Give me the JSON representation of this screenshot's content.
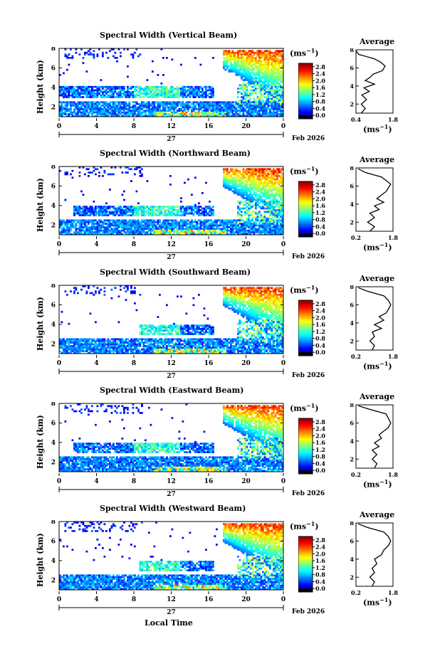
{
  "x_axis_title": "Local Time",
  "chart_data": [
    {
      "type": "heatmap",
      "title": "Spectral Width (Vertical Beam)",
      "ylabel": "Height (km)",
      "x_ticks": [
        "0",
        "4",
        "8",
        "12",
        "16",
        "20",
        "0"
      ],
      "y_ticks": [
        "2",
        "4",
        "6",
        "8"
      ],
      "xlim": [
        0,
        24
      ],
      "ylim": [
        1,
        8
      ],
      "day_label": "27",
      "date_label": "Feb 2026",
      "colorbar": {
        "unit": "(ms",
        "unit_sup": "−1",
        "unit_end": ")",
        "ticks": [
          "2.8",
          "2.4",
          "2.0",
          "1.6",
          "1.2",
          "0.8",
          "0.4",
          "0.0"
        ],
        "range": [
          0,
          2.8
        ]
      },
      "average": {
        "title": "Average",
        "xlabel": "(ms",
        "xlabel_sup": "−1",
        "xlabel_end": ")",
        "x_ticks": [
          "0.4",
          "1.8"
        ],
        "xlim": [
          0.4,
          1.8
        ],
        "y_ticks": [
          "2",
          "4",
          "6",
          "8"
        ],
        "profile": [
          [
            0.6,
            1.0
          ],
          [
            0.75,
            1.5
          ],
          [
            0.6,
            2.0
          ],
          [
            0.8,
            2.5
          ],
          [
            0.62,
            3.0
          ],
          [
            0.9,
            3.4
          ],
          [
            0.7,
            3.8
          ],
          [
            1.1,
            4.2
          ],
          [
            0.75,
            4.6
          ],
          [
            0.95,
            5.0
          ],
          [
            1.05,
            5.3
          ],
          [
            1.4,
            5.7
          ],
          [
            1.5,
            6.2
          ],
          [
            1.35,
            6.6
          ],
          [
            1.1,
            7.0
          ],
          [
            0.5,
            7.5
          ],
          [
            0.4,
            7.9
          ]
        ]
      }
    },
    {
      "type": "heatmap",
      "title": "Spectral Width (Northward Beam)",
      "ylabel": "Height (km)",
      "x_ticks": [
        "0",
        "4",
        "8",
        "12",
        "16",
        "20",
        "0"
      ],
      "y_ticks": [
        "2",
        "4",
        "6",
        "8"
      ],
      "xlim": [
        0,
        24
      ],
      "ylim": [
        1,
        8
      ],
      "day_label": "27",
      "date_label": "Feb 2026",
      "colorbar": {
        "unit": "(ms",
        "unit_sup": "−1",
        "unit_end": ")",
        "ticks": [
          "2.8",
          "2.4",
          "2.0",
          "1.6",
          "1.2",
          "0.8",
          "0.4",
          "0.0"
        ],
        "range": [
          0,
          2.8
        ]
      },
      "average": {
        "title": "Average",
        "xlabel": "(ms",
        "xlabel_sup": "−1",
        "xlabel_end": ")",
        "x_ticks": [
          "0.2",
          "1.8"
        ],
        "xlim": [
          0.2,
          1.8
        ],
        "y_ticks": [
          "2",
          "4",
          "6",
          "8"
        ],
        "profile": [
          [
            0.8,
            1.0
          ],
          [
            1.0,
            1.5
          ],
          [
            0.7,
            2.0
          ],
          [
            1.0,
            2.5
          ],
          [
            0.8,
            3.0
          ],
          [
            1.2,
            3.4
          ],
          [
            1.0,
            3.8
          ],
          [
            1.4,
            4.2
          ],
          [
            1.1,
            4.6
          ],
          [
            1.3,
            5.0
          ],
          [
            1.5,
            5.4
          ],
          [
            1.6,
            5.8
          ],
          [
            1.7,
            6.2
          ],
          [
            1.5,
            6.6
          ],
          [
            1.3,
            7.0
          ],
          [
            0.6,
            7.5
          ],
          [
            0.3,
            7.9
          ]
        ]
      }
    },
    {
      "type": "heatmap",
      "title": "Spectral Width (Southward Beam)",
      "ylabel": "Height (km)",
      "x_ticks": [
        "0",
        "4",
        "8",
        "12",
        "16",
        "20",
        "0"
      ],
      "y_ticks": [
        "2",
        "4",
        "6",
        "8"
      ],
      "xlim": [
        0,
        24
      ],
      "ylim": [
        1,
        8
      ],
      "day_label": "27",
      "date_label": "Feb 2026",
      "colorbar": {
        "unit": "(ms",
        "unit_sup": "−1",
        "unit_end": ")",
        "ticks": [
          "2.8",
          "2.4",
          "2.0",
          "1.6",
          "1.2",
          "0.8",
          "0.4",
          "0.0"
        ],
        "range": [
          0,
          2.8
        ]
      },
      "average": {
        "title": "Average",
        "xlabel": "(ms",
        "xlabel_sup": "−1",
        "xlabel_end": ")",
        "x_ticks": [
          "0.2",
          "1.8"
        ],
        "xlim": [
          0.2,
          1.8
        ],
        "y_ticks": [
          "2",
          "4",
          "6",
          "8"
        ],
        "profile": [
          [
            0.9,
            1.0
          ],
          [
            1.0,
            1.5
          ],
          [
            0.8,
            2.0
          ],
          [
            1.0,
            2.5
          ],
          [
            0.9,
            3.0
          ],
          [
            1.3,
            3.4
          ],
          [
            1.0,
            3.8
          ],
          [
            1.4,
            4.3
          ],
          [
            1.2,
            4.7
          ],
          [
            1.5,
            5.1
          ],
          [
            1.6,
            5.5
          ],
          [
            1.7,
            6.0
          ],
          [
            1.6,
            6.5
          ],
          [
            1.4,
            7.0
          ],
          [
            0.7,
            7.5
          ],
          [
            0.3,
            7.9
          ]
        ]
      }
    },
    {
      "type": "heatmap",
      "title": "Spectral Width (Eastward Beam)",
      "ylabel": "Height (km)",
      "x_ticks": [
        "0",
        "4",
        "8",
        "12",
        "16",
        "20",
        "0"
      ],
      "y_ticks": [
        "2",
        "4",
        "6",
        "8"
      ],
      "xlim": [
        0,
        24
      ],
      "ylim": [
        1,
        8
      ],
      "day_label": "27",
      "date_label": "Feb 2026",
      "colorbar": {
        "unit": "(ms",
        "unit_sup": "−1",
        "unit_end": ")",
        "ticks": [
          "2.8",
          "2.4",
          "2.0",
          "1.6",
          "1.2",
          "0.8",
          "0.4",
          "0.0"
        ],
        "range": [
          0,
          2.8
        ]
      },
      "average": {
        "title": "Average",
        "xlabel": "(ms",
        "xlabel_sup": "−1",
        "xlabel_end": ")",
        "x_ticks": [
          "0.2",
          "1.8"
        ],
        "xlim": [
          0.2,
          1.8
        ],
        "y_ticks": [
          "2",
          "4",
          "6",
          "8"
        ],
        "profile": [
          [
            1.0,
            1.0
          ],
          [
            1.1,
            1.5
          ],
          [
            0.9,
            2.0
          ],
          [
            1.1,
            2.5
          ],
          [
            0.9,
            3.0
          ],
          [
            1.2,
            3.4
          ],
          [
            1.0,
            3.8
          ],
          [
            1.3,
            4.3
          ],
          [
            1.2,
            4.7
          ],
          [
            1.4,
            5.1
          ],
          [
            1.6,
            5.5
          ],
          [
            1.7,
            6.0
          ],
          [
            1.6,
            6.5
          ],
          [
            1.5,
            7.0
          ],
          [
            0.8,
            7.5
          ],
          [
            0.3,
            7.9
          ]
        ]
      }
    },
    {
      "type": "heatmap",
      "title": "Spectral Width (Westward Beam)",
      "ylabel": "Height (km)",
      "x_ticks": [
        "0",
        "4",
        "8",
        "12",
        "16",
        "20",
        "0"
      ],
      "y_ticks": [
        "2",
        "4",
        "6",
        "8"
      ],
      "xlim": [
        0,
        24
      ],
      "ylim": [
        1,
        8
      ],
      "day_label": "27",
      "date_label": "Feb 2026",
      "colorbar": {
        "unit": "(ms",
        "unit_sup": "−1",
        "unit_end": ")",
        "ticks": [
          "2.8",
          "2.4",
          "2.0",
          "1.6",
          "1.2",
          "0.8",
          "0.4",
          "0.0"
        ],
        "range": [
          0,
          2.8
        ]
      },
      "average": {
        "title": "Average",
        "xlabel": "(ms",
        "xlabel_sup": "−1",
        "xlabel_end": ")",
        "x_ticks": [
          "0.2",
          "1.8"
        ],
        "xlim": [
          0.2,
          1.8
        ],
        "y_ticks": [
          "2",
          "4",
          "6",
          "8"
        ],
        "profile": [
          [
            0.9,
            1.0
          ],
          [
            1.0,
            1.5
          ],
          [
            0.8,
            2.0
          ],
          [
            1.0,
            2.5
          ],
          [
            0.9,
            3.0
          ],
          [
            1.1,
            3.5
          ],
          [
            1.0,
            4.0
          ],
          [
            1.3,
            4.5
          ],
          [
            1.4,
            5.0
          ],
          [
            1.6,
            5.5
          ],
          [
            1.7,
            6.0
          ],
          [
            1.6,
            6.5
          ],
          [
            1.4,
            7.0
          ],
          [
            0.7,
            7.5
          ],
          [
            0.3,
            7.9
          ]
        ]
      }
    }
  ]
}
